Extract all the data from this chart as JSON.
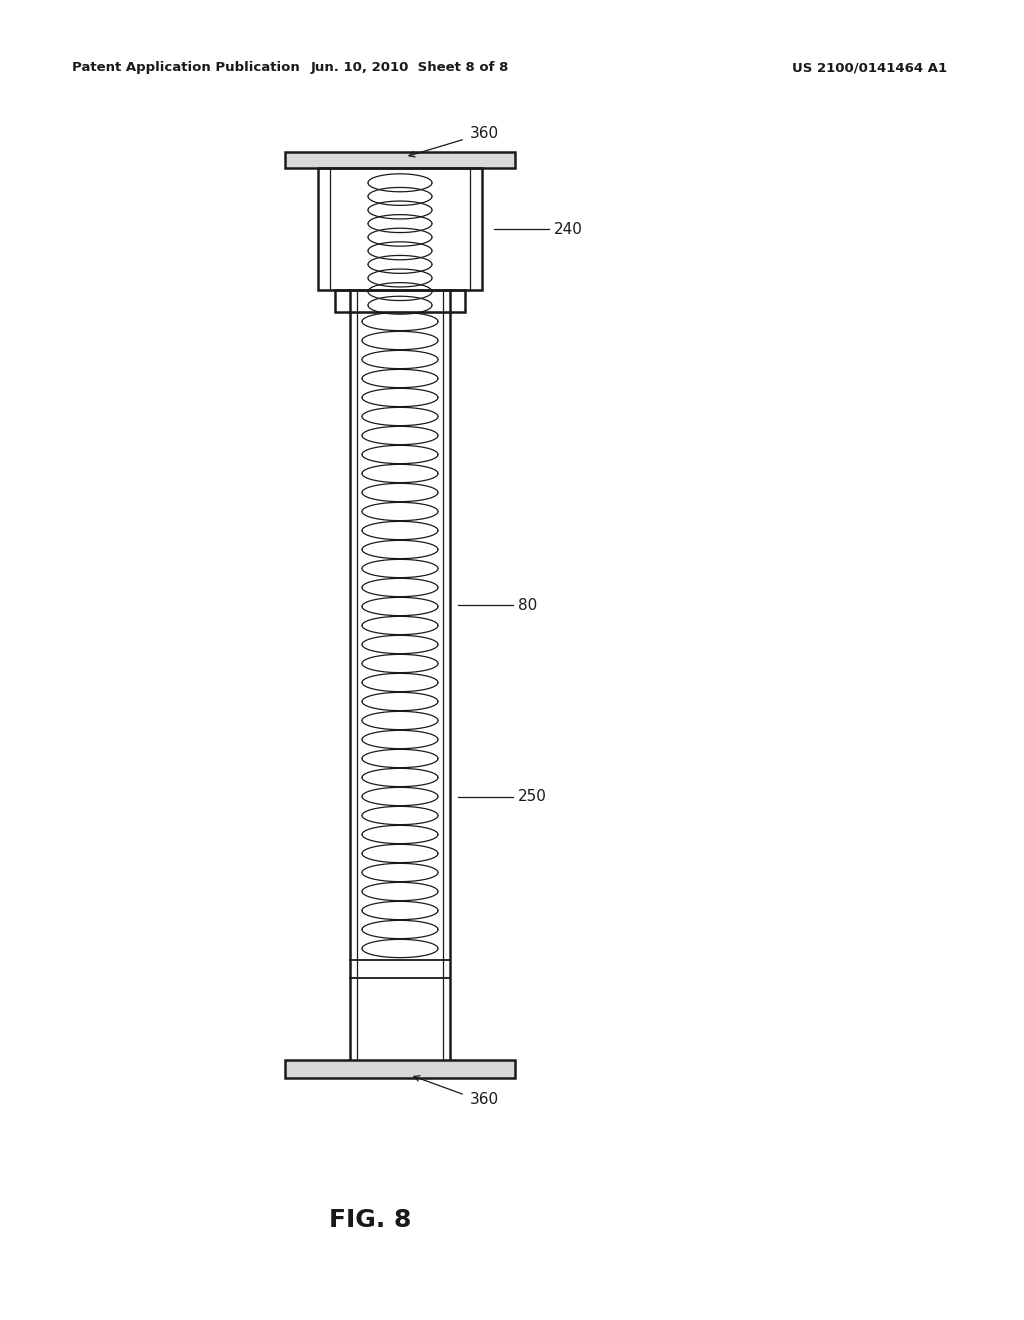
{
  "bg_color": "#ffffff",
  "line_color": "#1a1a1a",
  "text_color": "#1a1a1a",
  "header_left": "Patent Application Publication",
  "header_mid": "Jun. 10, 2010  Sheet 8 of 8",
  "header_right": "US 2100/0141464 A1",
  "fig_label": "FIG. 8",
  "labels": {
    "360_top": "360",
    "240": "240",
    "80": "80",
    "250": "250",
    "360_bot": "360"
  },
  "figure_width": 10.24,
  "figure_height": 13.2
}
